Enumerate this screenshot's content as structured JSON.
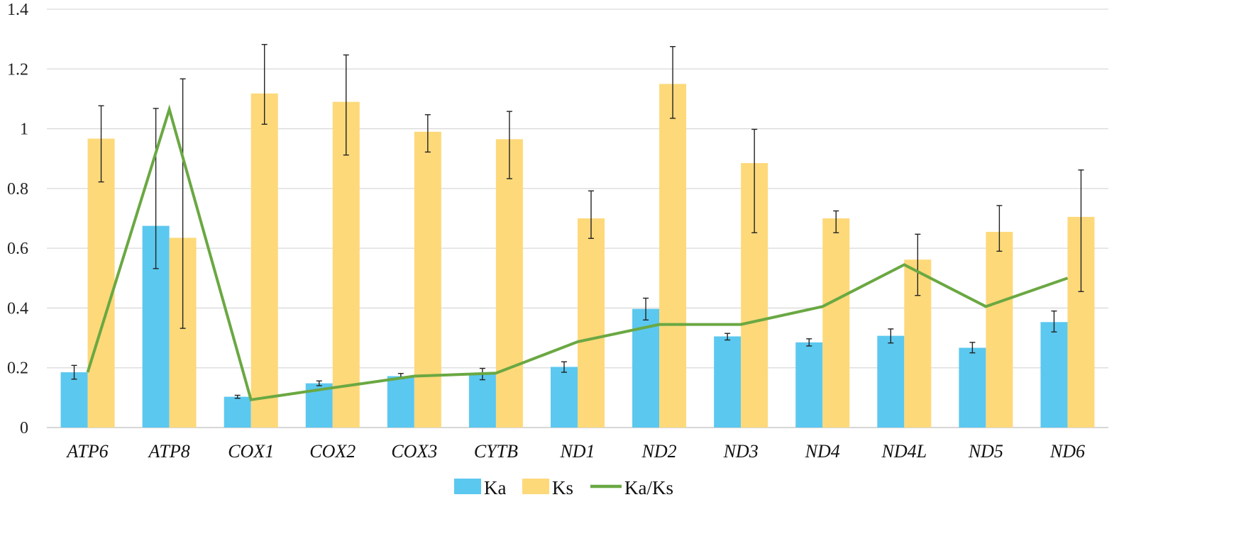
{
  "chart_data": {
    "type": "bar",
    "title": "",
    "xlabel": "",
    "ylabel": "",
    "ylim": [
      0,
      1.4
    ],
    "yticks": [
      0,
      0.2,
      0.4,
      0.6,
      0.8,
      1,
      1.2,
      1.4
    ],
    "ytick_labels": [
      "0",
      "0.2",
      "0.4",
      "0.6",
      "0.8",
      "1",
      "1.2",
      "1.4"
    ],
    "grid": true,
    "legend_position": "bottom",
    "categories": [
      "ATP6",
      "ATP8",
      "COX1",
      "COX2",
      "COX3",
      "CYTB",
      "ND1",
      "ND2",
      "ND3",
      "ND4",
      "ND4L",
      "ND5",
      "ND6"
    ],
    "series": [
      {
        "name": "Ka",
        "kind": "bar",
        "color": "#5bc8f0",
        "values": [
          0.185,
          0.675,
          0.103,
          0.148,
          0.172,
          0.178,
          0.203,
          0.397,
          0.305,
          0.285,
          0.307,
          0.267,
          0.353
        ],
        "error_low": [
          0.162,
          0.532,
          0.098,
          0.14,
          0.163,
          0.16,
          0.185,
          0.36,
          0.293,
          0.273,
          0.283,
          0.25,
          0.32
        ],
        "error_high": [
          0.208,
          1.068,
          0.108,
          0.156,
          0.181,
          0.198,
          0.22,
          0.433,
          0.315,
          0.297,
          0.33,
          0.285,
          0.39
        ]
      },
      {
        "name": "Ks",
        "kind": "bar",
        "color": "#fdd97a",
        "values": [
          0.967,
          0.635,
          1.118,
          1.09,
          0.99,
          0.965,
          0.7,
          1.15,
          0.885,
          0.7,
          0.562,
          0.655,
          0.705
        ],
        "error_low": [
          0.822,
          0.332,
          1.015,
          0.912,
          0.922,
          0.833,
          0.633,
          1.035,
          0.652,
          0.652,
          0.442,
          0.59,
          0.455
        ],
        "error_high": [
          1.077,
          1.167,
          1.282,
          1.247,
          1.047,
          1.058,
          0.792,
          1.275,
          0.998,
          0.725,
          0.647,
          0.743,
          0.862
        ]
      },
      {
        "name": "Ka/Ks",
        "kind": "line",
        "color": "#6aa842",
        "values": [
          0.185,
          1.065,
          0.093,
          0.133,
          0.172,
          0.182,
          0.287,
          0.345,
          0.345,
          0.405,
          0.545,
          0.405,
          0.5
        ]
      }
    ]
  }
}
